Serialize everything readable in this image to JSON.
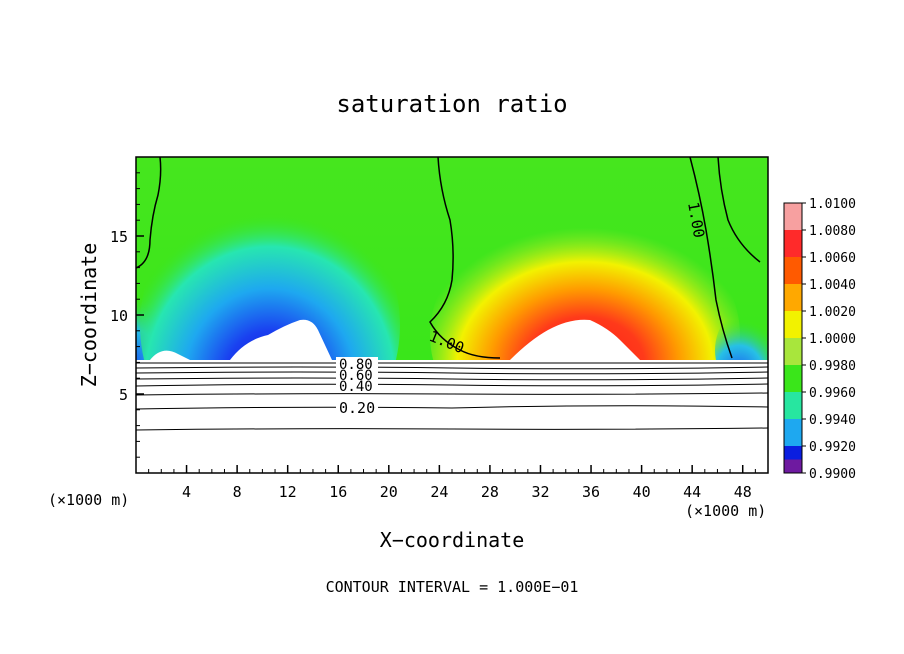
{
  "chart_data": {
    "type": "heatmap",
    "title": "saturation ratio",
    "xlabel": "X−coordinate",
    "ylabel": "Z−coordinate",
    "x_unit": "(×1000 m)",
    "y_unit": "(×1000 m)",
    "xlim": [
      0,
      50
    ],
    "ylim": [
      0,
      20
    ],
    "x_ticks": [
      "4",
      "8",
      "12",
      "16",
      "20",
      "24",
      "28",
      "32",
      "36",
      "40",
      "44",
      "48"
    ],
    "x_tick_values": [
      4,
      8,
      12,
      16,
      20,
      24,
      28,
      32,
      36,
      40,
      44,
      48
    ],
    "y_ticks": [
      "5",
      "10",
      "15"
    ],
    "y_tick_values": [
      5,
      10,
      15
    ],
    "colorbar": {
      "labels": [
        "1.0100",
        "1.0080",
        "1.0060",
        "1.0040",
        "1.0020",
        "1.0000",
        "0.9980",
        "0.9960",
        "0.9940",
        "0.9920",
        "0.9900"
      ],
      "values": [
        1.01,
        1.008,
        1.006,
        1.004,
        1.002,
        1.0,
        0.998,
        0.996,
        0.994,
        0.992,
        0.99
      ],
      "colors": [
        "#f7a0a0",
        "#ff2a2a",
        "#ff5a00",
        "#ffa800",
        "#f2f200",
        "#a8e63c",
        "#3ae61a",
        "#27e6a0",
        "#1ea8f0",
        "#0a1ee0",
        "#6e1aa0"
      ]
    },
    "contour_labels": [
      "1.00",
      "1.00",
      "0.80",
      "0.60",
      "0.40",
      "0.20"
    ],
    "contour_interval_text": "CONTOUR INTERVAL = 1.000E−01",
    "grid": false,
    "legend_position": "right"
  }
}
